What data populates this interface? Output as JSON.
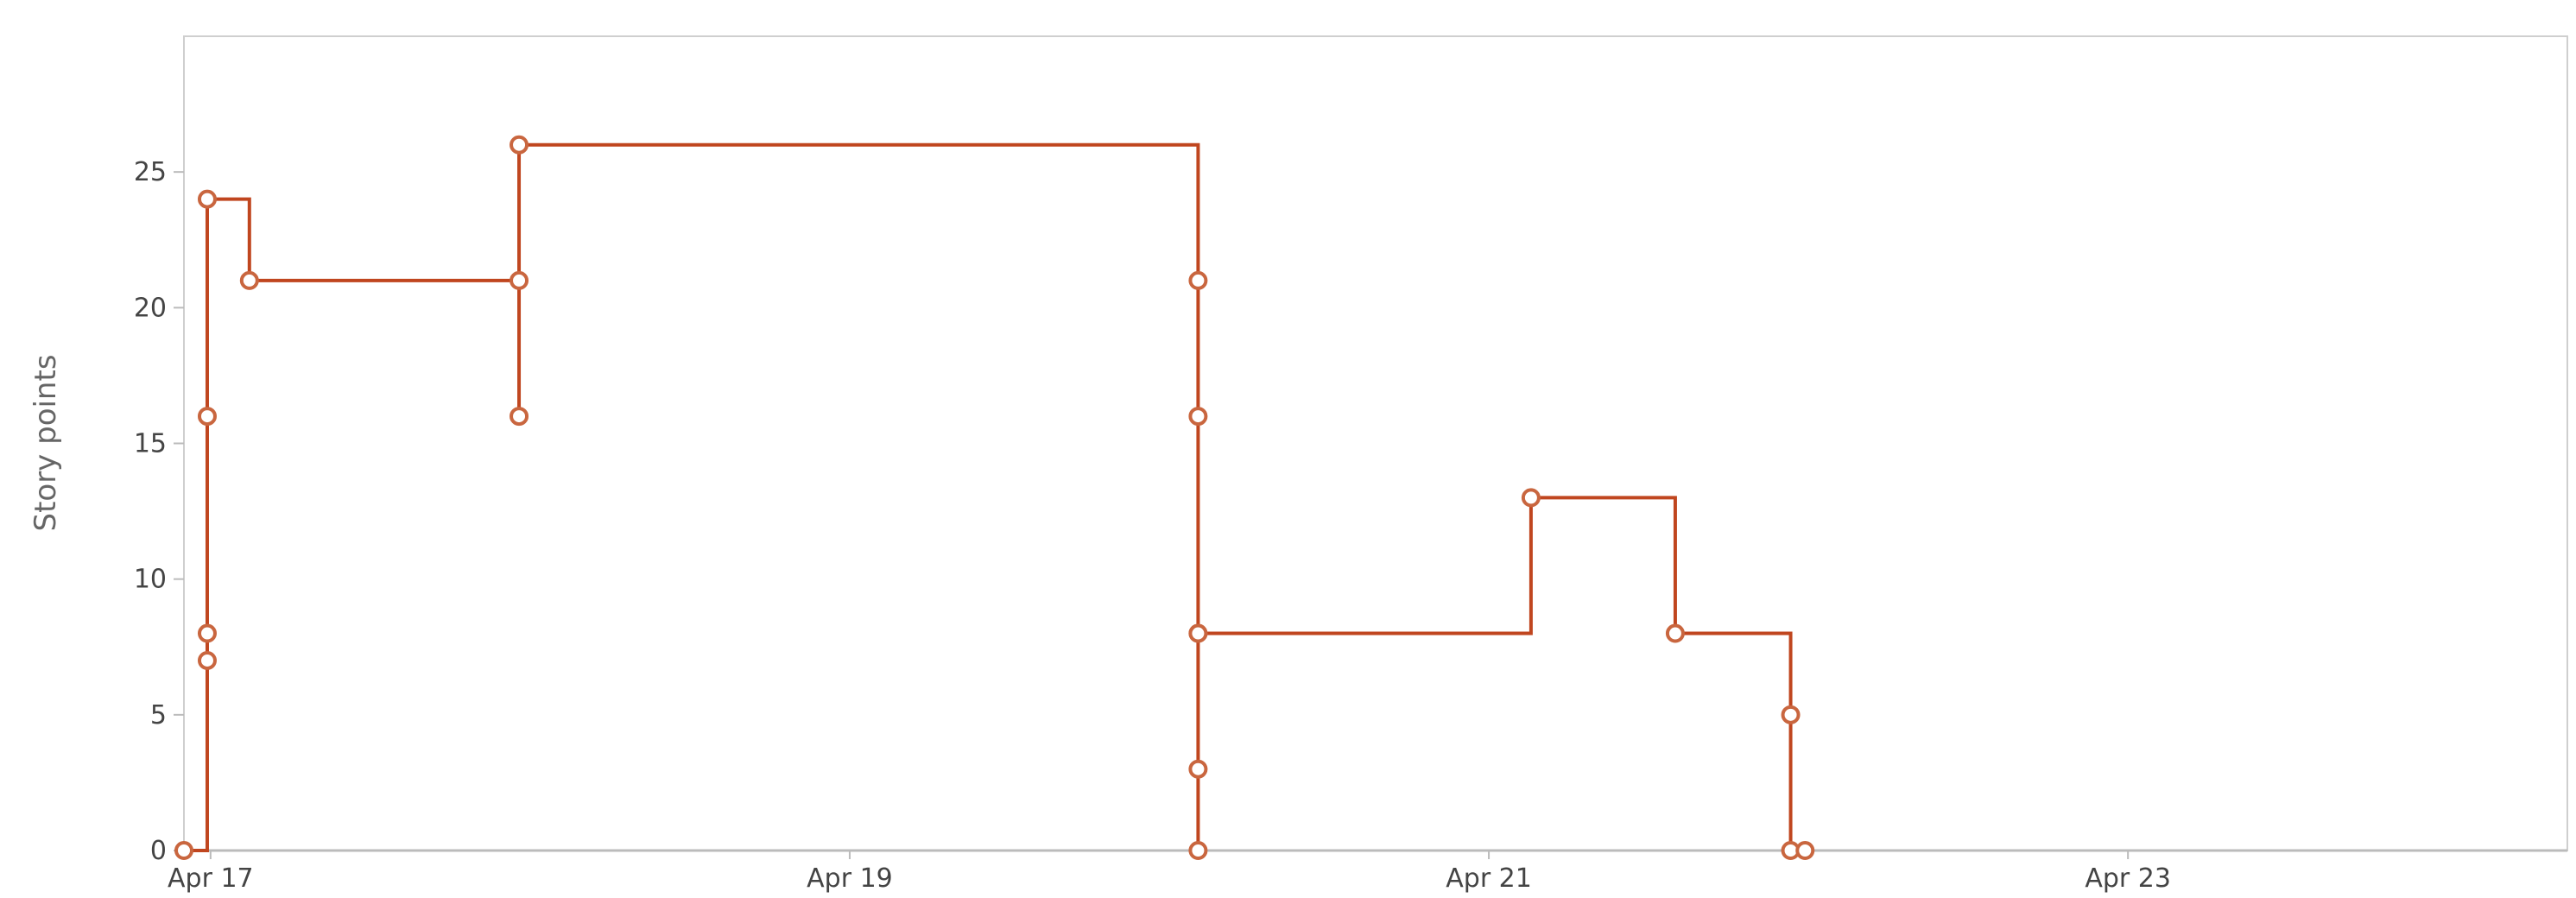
{
  "chart_data": {
    "type": "line",
    "step": "after",
    "ylabel": "Story points",
    "xlabel": "",
    "ylim": [
      0,
      30
    ],
    "xlim": [
      "2024-04-16T22:00:00",
      "2024-04-24T09:00:00"
    ],
    "y_ticks": [
      0,
      5,
      10,
      15,
      20,
      25
    ],
    "x_ticks": [
      {
        "label": "Apr 17",
        "value": "2024-04-17T00:00:00"
      },
      {
        "label": "Apr 19",
        "value": "2024-04-19T00:00:00"
      },
      {
        "label": "Apr 21",
        "value": "2024-04-21T00:00:00"
      },
      {
        "label": "Apr 23",
        "value": "2024-04-23T00:00:00"
      }
    ],
    "colors": {
      "line": "#c0461f",
      "marker_stroke": "#c9663f",
      "marker_fill": "#ffffff",
      "axis": "#bbbbbb",
      "plot_border": "#cfcfcf"
    },
    "series": [
      {
        "points": [
          {
            "x": "2024-04-16T22:00:00",
            "y": 0
          },
          {
            "x": "2024-04-16T23:45:00",
            "y": 7
          },
          {
            "x": "2024-04-16T23:45:00",
            "y": 8
          },
          {
            "x": "2024-04-16T23:45:00",
            "y": 16
          },
          {
            "x": "2024-04-16T23:45:00",
            "y": 24
          },
          {
            "x": "2024-04-17T02:55:00",
            "y": 21
          },
          {
            "x": "2024-04-17T23:10:00",
            "y": 16
          },
          {
            "x": "2024-04-17T23:10:00",
            "y": 21
          },
          {
            "x": "2024-04-17T23:10:00",
            "y": 26
          },
          {
            "x": "2024-04-20T02:10:00",
            "y": 21
          },
          {
            "x": "2024-04-20T02:10:00",
            "y": 16
          },
          {
            "x": "2024-04-20T02:10:00",
            "y": 8
          },
          {
            "x": "2024-04-20T02:10:00",
            "y": 3
          },
          {
            "x": "2024-04-20T02:10:00",
            "y": 0
          },
          {
            "x": "2024-04-20T02:10:00",
            "y": 8
          },
          {
            "x": "2024-04-21T03:10:00",
            "y": 13
          },
          {
            "x": "2024-04-21T14:00:00",
            "y": 8
          },
          {
            "x": "2024-04-21T22:40:00",
            "y": 5
          },
          {
            "x": "2024-04-21T22:40:00",
            "y": 0
          },
          {
            "x": "2024-04-21T23:45:00",
            "y": 0
          }
        ]
      }
    ]
  }
}
